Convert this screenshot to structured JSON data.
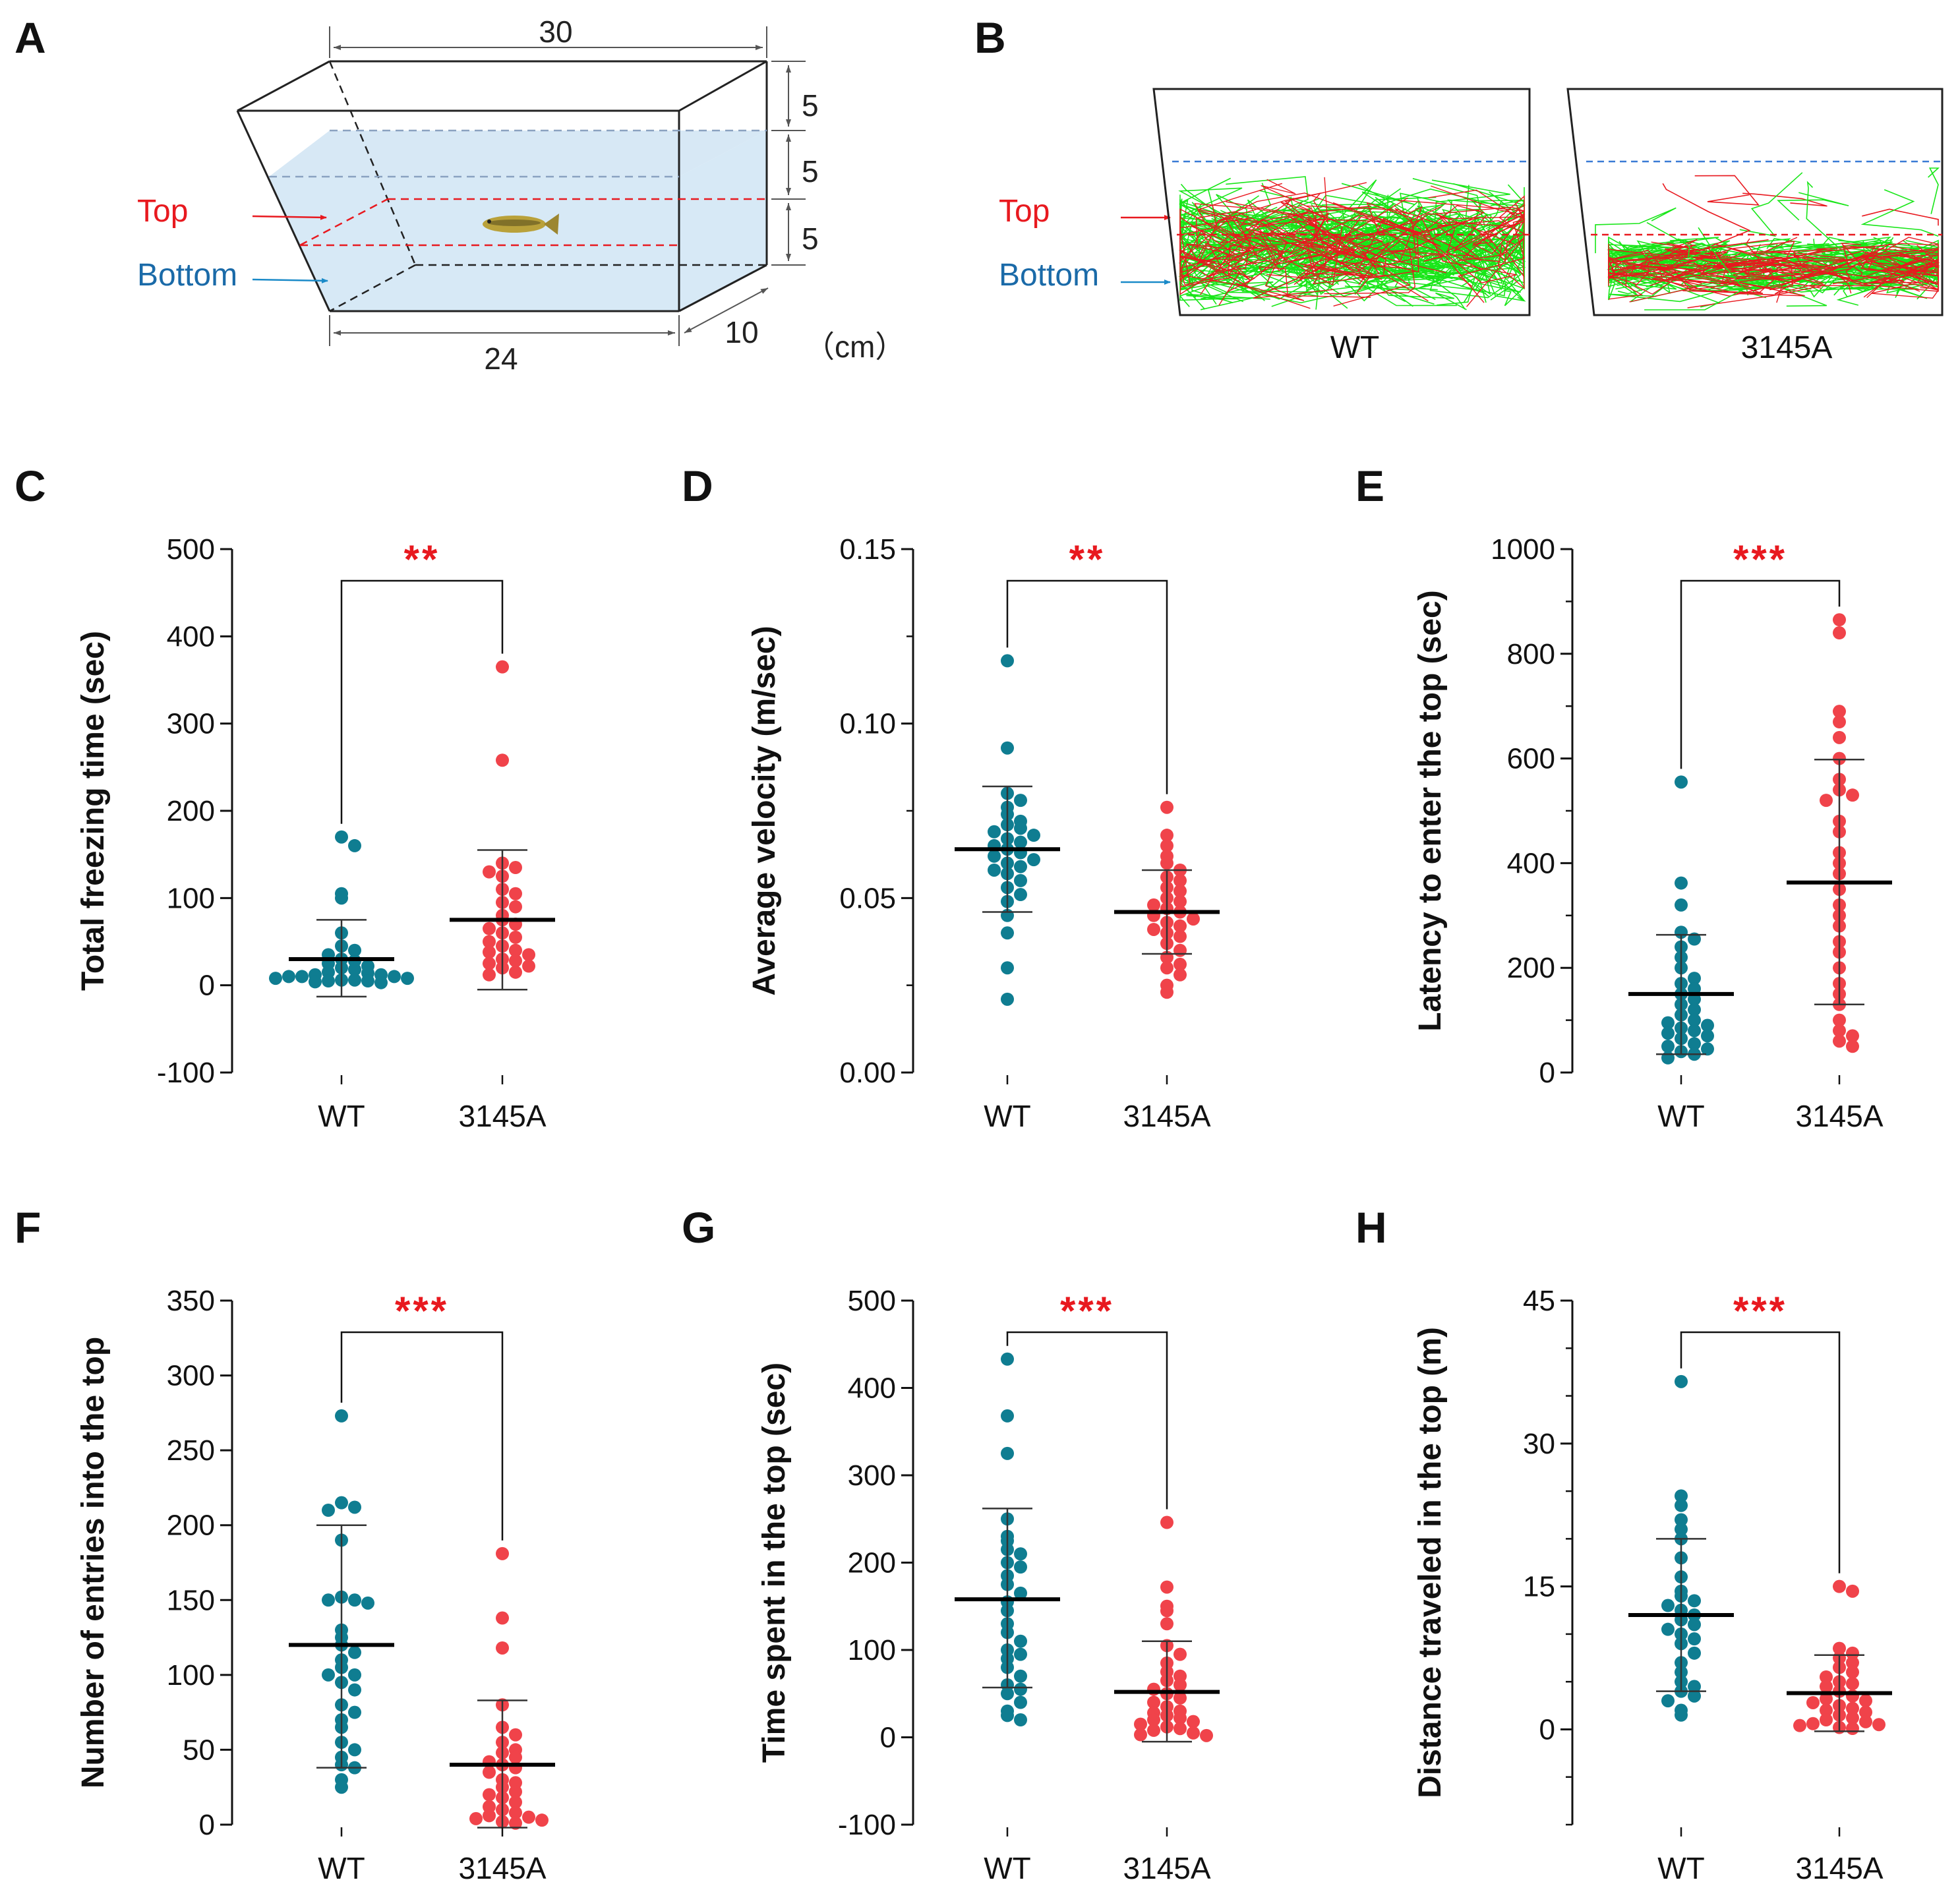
{
  "colors": {
    "wt": "#0f7d91",
    "mutant": "#f0434a",
    "significance": "#e8191f",
    "top_zone": "#e8191f",
    "bottom_zone": "#1a6aa8",
    "water": "#d7e9f6",
    "track_green": "#19e619",
    "track_red": "#e8191f"
  },
  "panel_labels": {
    "a": "A",
    "b": "B"
  },
  "tank": {
    "top_label": "Top",
    "bottom_label": "Bottom",
    "dim_top_width": "30",
    "dim_bottom_width": "24",
    "dim_depth": "10",
    "dim_height_1": "5",
    "dim_height_2": "5",
    "dim_height_3": "5",
    "unit": "（cm）"
  },
  "tracking": {
    "top_label": "Top",
    "bottom_label": "Bottom",
    "left_condition": "WT",
    "right_condition": "3145A"
  },
  "chart_data": [
    {
      "panel": "C",
      "type": "scatter",
      "ylabel": "Total freezing time (sec)",
      "categories": [
        "WT",
        "3145A"
      ],
      "ylim": [
        -100,
        500
      ],
      "yticks": [
        -100,
        0,
        100,
        200,
        300,
        400,
        500
      ],
      "minor_ticks": false,
      "significance": "**",
      "series": [
        {
          "name": "WT",
          "mean": 30,
          "sd_low": -13,
          "sd_high": 75,
          "values": [
            170,
            160,
            105,
            100,
            60,
            45,
            40,
            35,
            30,
            28,
            25,
            22,
            20,
            18,
            15,
            14,
            12,
            12,
            10,
            10,
            10,
            8,
            8,
            6,
            6,
            5,
            5,
            4,
            3
          ]
        },
        {
          "name": "3145A",
          "mean": 75,
          "sd_low": -5,
          "sd_high": 155,
          "values": [
            365,
            258,
            140,
            135,
            130,
            125,
            110,
            105,
            95,
            90,
            80,
            75,
            70,
            65,
            60,
            55,
            50,
            45,
            40,
            38,
            35,
            30,
            28,
            25,
            22,
            20,
            15,
            12
          ]
        }
      ]
    },
    {
      "panel": "D",
      "type": "scatter",
      "ylabel": "Average velocity (m/sec)",
      "categories": [
        "WT",
        "3145A"
      ],
      "ylim": [
        0,
        0.15
      ],
      "yticks": [
        0,
        0.05,
        0.1,
        0.15
      ],
      "tick_labels": [
        "0.00",
        "0.05",
        "0.10",
        "0.15"
      ],
      "minor_ticks": true,
      "significance": "**",
      "series": [
        {
          "name": "WT",
          "mean": 0.064,
          "sd_low": 0.046,
          "sd_high": 0.082,
          "values": [
            0.118,
            0.093,
            0.08,
            0.078,
            0.076,
            0.074,
            0.072,
            0.071,
            0.07,
            0.069,
            0.068,
            0.067,
            0.066,
            0.065,
            0.064,
            0.063,
            0.062,
            0.061,
            0.06,
            0.059,
            0.058,
            0.057,
            0.055,
            0.053,
            0.051,
            0.049,
            0.045,
            0.04,
            0.03,
            0.021
          ]
        },
        {
          "name": "3145A",
          "mean": 0.046,
          "sd_low": 0.034,
          "sd_high": 0.058,
          "values": [
            0.076,
            0.068,
            0.065,
            0.062,
            0.06,
            0.058,
            0.056,
            0.055,
            0.053,
            0.052,
            0.05,
            0.049,
            0.048,
            0.047,
            0.046,
            0.045,
            0.044,
            0.043,
            0.042,
            0.041,
            0.04,
            0.039,
            0.037,
            0.035,
            0.033,
            0.031,
            0.03,
            0.028,
            0.025,
            0.023
          ]
        }
      ]
    },
    {
      "panel": "E",
      "type": "scatter",
      "ylabel": "Latency to enter the top (sec)",
      "categories": [
        "WT",
        "3145A"
      ],
      "ylim": [
        0,
        1000
      ],
      "yticks": [
        0,
        200,
        400,
        600,
        800,
        1000
      ],
      "minor_ticks": true,
      "significance": "***",
      "series": [
        {
          "name": "WT",
          "mean": 150,
          "sd_low": 35,
          "sd_high": 263,
          "values": [
            555,
            362,
            320,
            268,
            255,
            240,
            220,
            200,
            180,
            170,
            160,
            150,
            140,
            130,
            120,
            110,
            100,
            95,
            90,
            85,
            80,
            75,
            70,
            65,
            55,
            50,
            45,
            40,
            35,
            28
          ]
        },
        {
          "name": "3145A",
          "mean": 363,
          "sd_low": 130,
          "sd_high": 598,
          "values": [
            865,
            840,
            690,
            670,
            640,
            600,
            560,
            540,
            530,
            520,
            480,
            460,
            420,
            400,
            380,
            350,
            320,
            300,
            280,
            250,
            230,
            200,
            170,
            150,
            130,
            100,
            80,
            70,
            60,
            50
          ]
        }
      ]
    },
    {
      "panel": "F",
      "type": "scatter",
      "ylabel": "Number of entries into the top",
      "categories": [
        "WT",
        "3145A"
      ],
      "ylim": [
        0,
        350
      ],
      "yticks": [
        0,
        50,
        100,
        150,
        200,
        250,
        300,
        350
      ],
      "minor_ticks": false,
      "significance": "***",
      "series": [
        {
          "name": "WT",
          "mean": 120,
          "sd_low": 38,
          "sd_high": 200,
          "values": [
            273,
            215,
            212,
            210,
            190,
            152,
            150,
            150,
            148,
            130,
            125,
            120,
            115,
            110,
            105,
            100,
            100,
            95,
            90,
            80,
            75,
            70,
            65,
            55,
            50,
            45,
            40,
            38,
            30,
            25
          ]
        },
        {
          "name": "3145A",
          "mean": 40,
          "sd_low": -2,
          "sd_high": 83,
          "values": [
            181,
            138,
            118,
            80,
            65,
            60,
            55,
            50,
            48,
            45,
            42,
            40,
            38,
            35,
            30,
            28,
            25,
            22,
            20,
            18,
            15,
            12,
            10,
            8,
            6,
            5,
            4,
            3,
            2,
            1
          ]
        }
      ]
    },
    {
      "panel": "G",
      "type": "scatter",
      "ylabel": "Time spent in the top (sec)",
      "categories": [
        "WT",
        "3145A"
      ],
      "ylim": [
        -100,
        500
      ],
      "yticks": [
        -100,
        0,
        100,
        200,
        300,
        400,
        500
      ],
      "minor_ticks": false,
      "significance": "***",
      "series": [
        {
          "name": "WT",
          "mean": 158,
          "sd_low": 57,
          "sd_high": 262,
          "values": [
            433,
            368,
            325,
            250,
            230,
            225,
            215,
            210,
            200,
            195,
            185,
            175,
            165,
            155,
            145,
            130,
            120,
            110,
            100,
            95,
            90,
            80,
            70,
            60,
            55,
            50,
            40,
            30,
            25,
            20
          ]
        },
        {
          "name": "3145A",
          "mean": 52,
          "sd_low": -5,
          "sd_high": 110,
          "values": [
            246,
            172,
            150,
            145,
            130,
            105,
            95,
            85,
            75,
            70,
            65,
            60,
            55,
            50,
            45,
            40,
            35,
            30,
            28,
            25,
            22,
            20,
            18,
            15,
            12,
            10,
            8,
            5,
            3,
            2
          ]
        }
      ]
    },
    {
      "panel": "H",
      "type": "scatter",
      "ylabel": "Distance traveled in the top (m)",
      "categories": [
        "WT",
        "3145A"
      ],
      "ylim": [
        -10,
        45
      ],
      "yticks": [
        0,
        15,
        30,
        45
      ],
      "minor_ticks": true,
      "significance": "***",
      "series": [
        {
          "name": "WT",
          "mean": 12,
          "sd_low": 4,
          "sd_high": 20,
          "values": [
            36.5,
            24.5,
            23.5,
            22,
            21,
            20,
            18,
            16,
            14.5,
            14,
            13.5,
            13,
            12.5,
            12,
            11.5,
            11,
            10.5,
            10,
            9.5,
            9,
            8,
            7,
            6,
            5,
            4.5,
            4,
            3.5,
            3,
            2,
            1.5
          ]
        },
        {
          "name": "3145A",
          "mean": 3.8,
          "sd_low": -0.2,
          "sd_high": 7.8,
          "values": [
            15,
            14.5,
            8.5,
            8,
            7.5,
            7,
            6.5,
            6,
            5.5,
            5,
            4.8,
            4.5,
            4,
            3.5,
            3.2,
            3,
            2.8,
            2.5,
            2.2,
            2,
            1.8,
            1.5,
            1.2,
            1,
            0.8,
            0.6,
            0.5,
            0.4,
            0.2,
            0.1
          ]
        }
      ]
    }
  ]
}
